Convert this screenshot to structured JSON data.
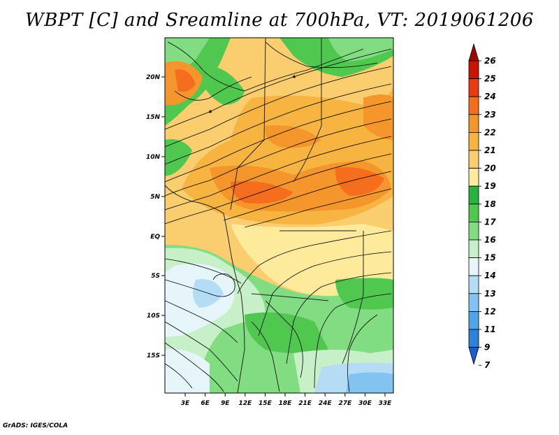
{
  "title": "WBPT [C] and Sreamline at 700hPa, VT: 2019061206",
  "footer": "GrADS: IGES/COLA",
  "map": {
    "lat_labels": [
      "20N",
      "15N",
      "10N",
      "5N",
      "EQ",
      "5S",
      "10S",
      "15S"
    ],
    "lon_labels": [
      "3E",
      "6E",
      "9E",
      "12E",
      "15E",
      "18E",
      "21E",
      "24E",
      "27E",
      "30E",
      "33E"
    ]
  },
  "colorbar": {
    "labels": [
      "26",
      "25",
      "24",
      "23",
      "22",
      "21",
      "20",
      "19",
      "18",
      "17",
      "16",
      "15",
      "14",
      "13",
      "12",
      "11",
      "9",
      "7"
    ],
    "colors": [
      "#a50000",
      "#c81400",
      "#e63c14",
      "#f56e1e",
      "#f5962d",
      "#f7b441",
      "#facd6e",
      "#fdeb9b",
      "#28b43c",
      "#50c850",
      "#82dc82",
      "#c8f0c8",
      "#e6f5fa",
      "#b4dcf5",
      "#82c3f0",
      "#50a5e6",
      "#2d82dc",
      "#1e5ad2"
    ]
  }
}
